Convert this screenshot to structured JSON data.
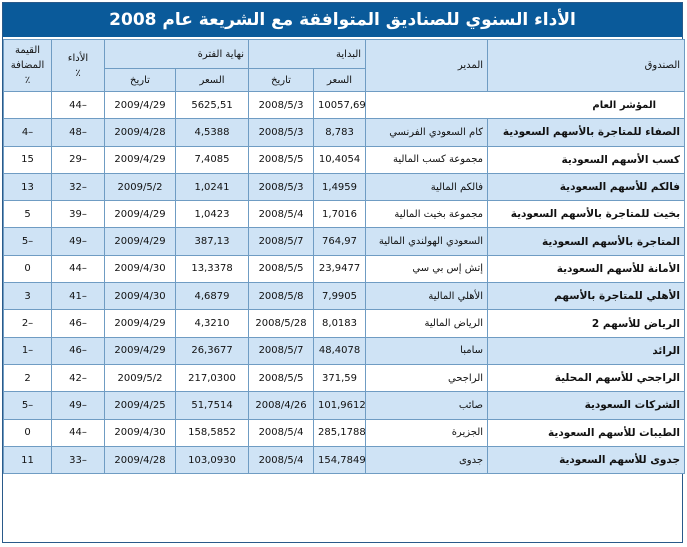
{
  "title": "الأداء السنوي للصناديق المتوافقة مع الشريعة عام 2008",
  "headers": {
    "fund": "الصندوق",
    "manager": "المدير",
    "start": "البداية",
    "end": "نهاية الفترة",
    "performance": "الأداء",
    "performance_unit": "٪",
    "value_added": "القيمة المضافة",
    "value_added_unit": "٪",
    "price": "السعر",
    "date": "تاريخ",
    "end_price": "السعر",
    "end_date": "تاريخ",
    "index_label": "المؤشر العام"
  },
  "index_row": {
    "start_price": "10057,69",
    "start_date": "2008/5/3",
    "end_price": "5625,51",
    "end_date": "2009/4/29",
    "performance": "44–",
    "value_added": ""
  },
  "rows": [
    {
      "fund": "الصفاء للمتاجرة بالأسهم السعودية",
      "manager": "كام السعودي الفرنسي",
      "start_price": "8,783",
      "start_date": "2008/5/3",
      "end_price": "4,5388",
      "end_date": "2009/4/28",
      "performance": "48–",
      "value_added": "4–"
    },
    {
      "fund": "كسب الأسهم السعودية",
      "manager": "مجموعة كسب المالية",
      "start_price": "10,4054",
      "start_date": "2008/5/5",
      "end_price": "7,4085",
      "end_date": "2009/4/29",
      "performance": "29–",
      "value_added": "15"
    },
    {
      "fund": "فالكم للأسهم السعودية",
      "manager": "فالكم المالية",
      "start_price": "1,4959",
      "start_date": "2008/5/3",
      "end_price": "1,0241",
      "end_date": "2009/5/2",
      "performance": "32–",
      "value_added": "13"
    },
    {
      "fund": "بخيت للمتاجرة بالأسهم السعودية",
      "manager": "مجموعة بخيت المالية",
      "start_price": "1,7016",
      "start_date": "2008/5/4",
      "end_price": "1,0423",
      "end_date": "2009/4/29",
      "performance": "39–",
      "value_added": "5"
    },
    {
      "fund": "المتاجرة بالأسهم السعودية",
      "manager": "السعودي الهولندي المالية",
      "start_price": "764,97",
      "start_date": "2008/5/7",
      "end_price": "387,13",
      "end_date": "2009/4/29",
      "performance": "49–",
      "value_added": "5–"
    },
    {
      "fund": "الأمانة للأسهم السعودية",
      "manager": "إتش إس بي سي",
      "start_price": "23,9477",
      "start_date": "2008/5/5",
      "end_price": "13,3378",
      "end_date": "2009/4/30",
      "performance": "44–",
      "value_added": "0"
    },
    {
      "fund": "الأهلي للمتاجرة بالأسهم",
      "manager": "الأهلي المالية",
      "start_price": "7,9905",
      "start_date": "2008/5/8",
      "end_price": "4,6879",
      "end_date": "2009/4/30",
      "performance": "41–",
      "value_added": "3"
    },
    {
      "fund": "الرياض للأسهم 2",
      "manager": "الرياض المالية",
      "start_price": "8,0183",
      "start_date": "2008/5/28",
      "end_price": "4,3210",
      "end_date": "2009/4/29",
      "performance": "46–",
      "value_added": "2–"
    },
    {
      "fund": "الرائد",
      "manager": "سامبا",
      "start_price": "48,4078",
      "start_date": "2008/5/7",
      "end_price": "26,3677",
      "end_date": "2009/4/29",
      "performance": "46–",
      "value_added": "1–"
    },
    {
      "fund": "الراجحي للأسهم المحلية",
      "manager": "الراجحي",
      "start_price": "371,59",
      "start_date": "2008/5/5",
      "end_price": "217,0300",
      "end_date": "2009/5/2",
      "performance": "42–",
      "value_added": "2"
    },
    {
      "fund": "الشركات السعودية",
      "manager": "صائب",
      "start_price": "101,9612",
      "start_date": "2008/4/26",
      "end_price": "51,7514",
      "end_date": "2009/4/25",
      "performance": "49–",
      "value_added": "5–"
    },
    {
      "fund": "الطيبات للأسهم السعودية",
      "manager": "الجزيرة",
      "start_price": "285,1788",
      "start_date": "2008/5/4",
      "end_price": "158,5852",
      "end_date": "2009/4/30",
      "performance": "44–",
      "value_added": "0"
    },
    {
      "fund": "جدوى للأسهم السعودية",
      "manager": "جدوى",
      "start_price": "154,7849",
      "start_date": "2008/5/4",
      "end_price": "103,0930",
      "end_date": "2009/4/28",
      "performance": "33–",
      "value_added": "11"
    }
  ]
}
